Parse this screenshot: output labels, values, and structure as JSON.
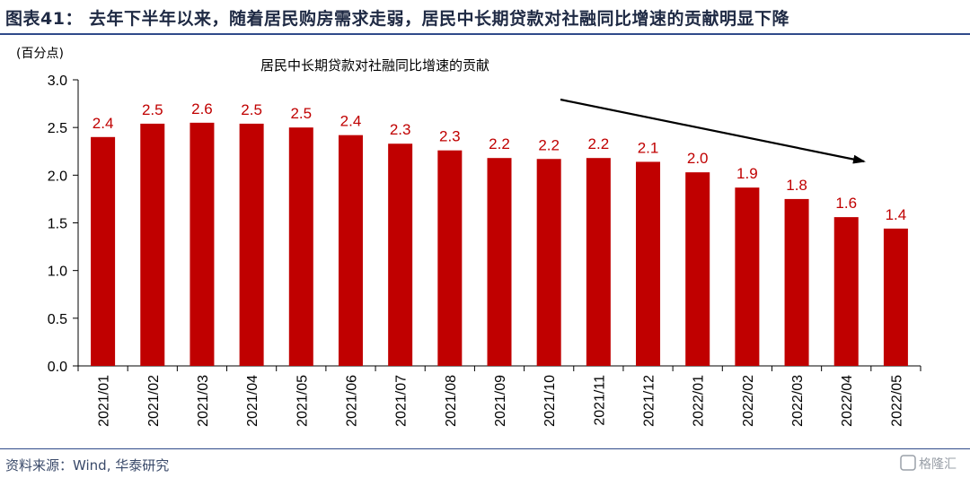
{
  "header": {
    "figure_title": "图表41：  去年下半年以来，随着居民购房需求走弱，居民中长期贷款对社融同比增速的贡献明显下降"
  },
  "footer": {
    "source": "资料来源：Wind, 华泰研究",
    "watermark": "格隆汇"
  },
  "colors": {
    "bar": "#c00000",
    "label": "#c00000",
    "rule": "#2f4a8a"
  },
  "chart_data": {
    "type": "bar",
    "title": "居民中长期贷款对社融同比增速的贡献",
    "unit_label": "(百分点)",
    "categories": [
      "2021/01",
      "2021/02",
      "2021/03",
      "2021/04",
      "2021/05",
      "2021/06",
      "2021/07",
      "2021/08",
      "2021/09",
      "2021/10",
      "2021/11",
      "2021/12",
      "2022/01",
      "2022/02",
      "2022/03",
      "2022/04",
      "2022/05"
    ],
    "values": [
      2.4,
      2.54,
      2.55,
      2.54,
      2.5,
      2.42,
      2.33,
      2.26,
      2.18,
      2.17,
      2.18,
      2.14,
      2.03,
      1.87,
      1.75,
      1.56,
      1.44
    ],
    "data_labels": [
      "2.4",
      "2.5",
      "2.6",
      "2.5",
      "2.5",
      "2.4",
      "2.3",
      "2.3",
      "2.2",
      "2.2",
      "2.2",
      "2.1",
      "2.0",
      "1.9",
      "1.8",
      "1.6",
      "1.4"
    ],
    "yticks": [
      "0.0",
      "0.5",
      "1.0",
      "1.5",
      "2.0",
      "2.5",
      "3.0"
    ],
    "ylim": [
      0,
      3.0
    ],
    "grid": false,
    "legend": "none",
    "annotation": "downward trend arrow from 2021/10 to 2022/04"
  }
}
